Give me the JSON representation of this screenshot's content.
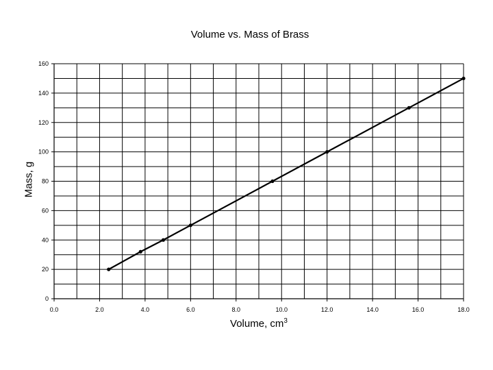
{
  "chart_data": {
    "type": "line",
    "title": "Volume vs. Mass of Brass",
    "xlabel_text": "Volume, cm",
    "xlabel_superscript": "3",
    "ylabel": "Mass, g",
    "xlim": [
      0,
      18
    ],
    "ylim": [
      0,
      160
    ],
    "x_tick_labels": [
      "0.0",
      "2.0",
      "4.0",
      "6.0",
      "8.0",
      "10.0",
      "12.0",
      "14.0",
      "16.0",
      "18.0"
    ],
    "y_tick_labels": [
      "0",
      "20",
      "40",
      "60",
      "80",
      "100",
      "120",
      "140",
      "160"
    ],
    "x_minor_step": 1,
    "y_minor_step": 10,
    "grid": true,
    "legend": "none",
    "series": [
      {
        "color": "#000000",
        "points": [
          {
            "x": 2.4,
            "y": 20
          },
          {
            "x": 3.8,
            "y": 32
          },
          {
            "x": 4.8,
            "y": 40
          },
          {
            "x": 6.0,
            "y": 50
          },
          {
            "x": 9.6,
            "y": 80
          },
          {
            "x": 12.0,
            "y": 100
          },
          {
            "x": 15.6,
            "y": 130
          },
          {
            "x": 18.0,
            "y": 150
          }
        ]
      }
    ]
  }
}
